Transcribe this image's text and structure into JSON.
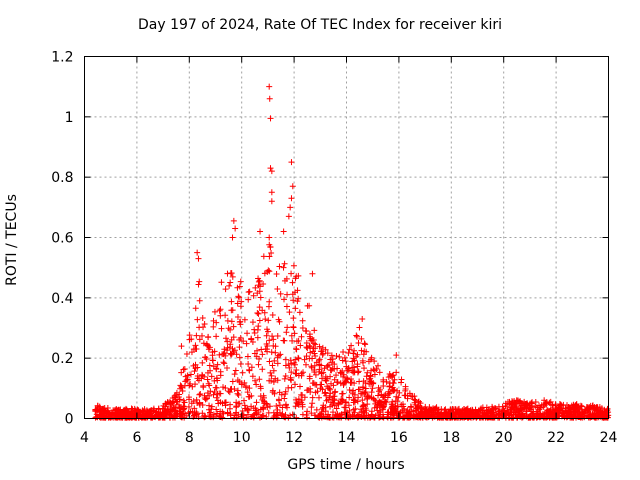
{
  "chart_data": {
    "type": "scatter",
    "title": "Day 197 of 2024, Rate Of TEC Index for receiver kiri",
    "xlabel": "GPS time / hours",
    "ylabel": "ROTI / TECUs",
    "xlim": [
      4,
      24
    ],
    "ylim": [
      0,
      1.2
    ],
    "xticks": [
      4,
      6,
      8,
      10,
      12,
      14,
      16,
      18,
      20,
      22,
      24
    ],
    "yticks": [
      0,
      0.2,
      0.4,
      0.6,
      0.8,
      1,
      1.2
    ],
    "ytick_labels": [
      "0",
      "0.2",
      "0.4",
      "0.6",
      "0.8",
      "1",
      "1.2"
    ],
    "grid": true,
    "marker": "+",
    "series_color": "#ff0000",
    "data_start_hour": 4.4,
    "data_end_hour": 24.0,
    "envelope": [
      {
        "x": 4.4,
        "y": 0.05
      },
      {
        "x": 5.0,
        "y": 0.03
      },
      {
        "x": 6.0,
        "y": 0.03
      },
      {
        "x": 6.8,
        "y": 0.03
      },
      {
        "x": 7.0,
        "y": 0.04
      },
      {
        "x": 7.5,
        "y": 0.08
      },
      {
        "x": 7.8,
        "y": 0.2
      },
      {
        "x": 8.0,
        "y": 0.28
      },
      {
        "x": 8.3,
        "y": 0.5
      },
      {
        "x": 8.7,
        "y": 0.3
      },
      {
        "x": 9.0,
        "y": 0.42
      },
      {
        "x": 9.5,
        "y": 0.5
      },
      {
        "x": 10.0,
        "y": 0.45
      },
      {
        "x": 10.5,
        "y": 0.5
      },
      {
        "x": 11.0,
        "y": 0.6
      },
      {
        "x": 11.5,
        "y": 0.5
      },
      {
        "x": 12.0,
        "y": 0.55
      },
      {
        "x": 12.5,
        "y": 0.4
      },
      {
        "x": 13.0,
        "y": 0.25
      },
      {
        "x": 13.5,
        "y": 0.2
      },
      {
        "x": 14.0,
        "y": 0.25
      },
      {
        "x": 14.5,
        "y": 0.3
      },
      {
        "x": 15.0,
        "y": 0.2
      },
      {
        "x": 15.5,
        "y": 0.15
      },
      {
        "x": 16.0,
        "y": 0.15
      },
      {
        "x": 16.5,
        "y": 0.08
      },
      {
        "x": 17.0,
        "y": 0.04
      },
      {
        "x": 18.0,
        "y": 0.03
      },
      {
        "x": 19.0,
        "y": 0.03
      },
      {
        "x": 19.5,
        "y": 0.04
      },
      {
        "x": 20.0,
        "y": 0.05
      },
      {
        "x": 20.5,
        "y": 0.06
      },
      {
        "x": 21.0,
        "y": 0.05
      },
      {
        "x": 21.5,
        "y": 0.06
      },
      {
        "x": 22.0,
        "y": 0.05
      },
      {
        "x": 22.5,
        "y": 0.04
      },
      {
        "x": 23.0,
        "y": 0.05
      },
      {
        "x": 23.5,
        "y": 0.04
      },
      {
        "x": 24.0,
        "y": 0.03
      }
    ],
    "outliers": [
      {
        "x": 11.05,
        "y": 1.1
      },
      {
        "x": 11.07,
        "y": 1.06
      },
      {
        "x": 11.1,
        "y": 0.995
      },
      {
        "x": 11.1,
        "y": 0.83
      },
      {
        "x": 11.15,
        "y": 0.82
      },
      {
        "x": 11.9,
        "y": 0.85
      },
      {
        "x": 11.95,
        "y": 0.77
      },
      {
        "x": 11.9,
        "y": 0.73
      },
      {
        "x": 11.85,
        "y": 0.7
      },
      {
        "x": 11.15,
        "y": 0.75
      },
      {
        "x": 11.15,
        "y": 0.72
      },
      {
        "x": 11.8,
        "y": 0.67
      },
      {
        "x": 9.7,
        "y": 0.655
      },
      {
        "x": 9.75,
        "y": 0.63
      },
      {
        "x": 9.65,
        "y": 0.6
      },
      {
        "x": 10.7,
        "y": 0.62
      },
      {
        "x": 11.05,
        "y": 0.6
      },
      {
        "x": 11.6,
        "y": 0.62
      },
      {
        "x": 8.3,
        "y": 0.55
      },
      {
        "x": 8.35,
        "y": 0.53
      },
      {
        "x": 12.7,
        "y": 0.48
      },
      {
        "x": 14.6,
        "y": 0.33
      },
      {
        "x": 15.9,
        "y": 0.21
      },
      {
        "x": 7.7,
        "y": 0.24
      }
    ]
  }
}
